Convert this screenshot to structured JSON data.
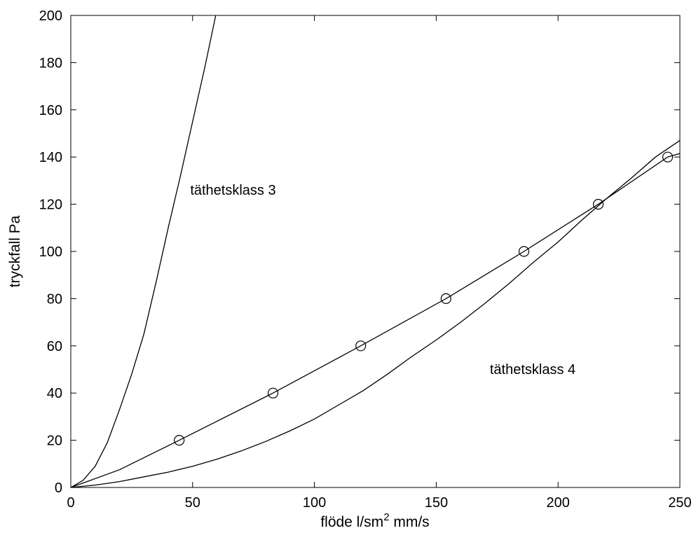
{
  "chart_data": {
    "type": "line",
    "xlabel_main": "flöde l/sm",
    "xlabel_sup": "2",
    "xlabel_rest": " mm/s",
    "ylabel": "tryckfall Pa",
    "xlim": [
      0,
      250
    ],
    "ylim": [
      0,
      200
    ],
    "xticks": [
      0,
      50,
      100,
      150,
      200,
      250
    ],
    "yticks": [
      0,
      20,
      40,
      60,
      80,
      100,
      120,
      140,
      160,
      180,
      200
    ],
    "grid": false,
    "line_color": "#000000",
    "series": [
      {
        "x": [
          0,
          5,
          10,
          15,
          20,
          25,
          30,
          35,
          40,
          45,
          50,
          55,
          59.5
        ],
        "y": [
          0,
          3,
          9,
          19,
          33,
          48,
          65,
          87,
          110,
          132,
          155,
          178,
          200
        ]
      },
      {
        "x": [
          0,
          10,
          20,
          30,
          40,
          50,
          60,
          70,
          80,
          90,
          100,
          110,
          120,
          130,
          140,
          150,
          160,
          170,
          180,
          190,
          200,
          210,
          220,
          230,
          240,
          250
        ],
        "y": [
          0,
          1,
          2.5,
          4.5,
          6.5,
          9,
          12,
          15.5,
          19.5,
          24,
          29,
          35,
          41,
          48,
          55.5,
          62.5,
          70,
          78,
          86.5,
          95.5,
          104,
          113.5,
          122.5,
          131,
          140,
          147
        ]
      },
      {
        "x": [
          0,
          20,
          44.5,
          83,
          119,
          154,
          186,
          216.5,
          245,
          250
        ],
        "y": [
          0,
          7.5,
          20,
          40,
          60,
          80,
          100,
          120,
          140,
          141.5
        ]
      }
    ],
    "markers": {
      "x": [
        44.5,
        83,
        119,
        154,
        186,
        216.5,
        245
      ],
      "y": [
        20,
        40,
        60,
        80,
        100,
        120,
        140
      ]
    },
    "annotations": [
      {
        "text": "täthetsklass 3",
        "x": 49,
        "y": 124
      },
      {
        "text": "täthetsklass 4",
        "x": 172,
        "y": 48
      }
    ]
  }
}
